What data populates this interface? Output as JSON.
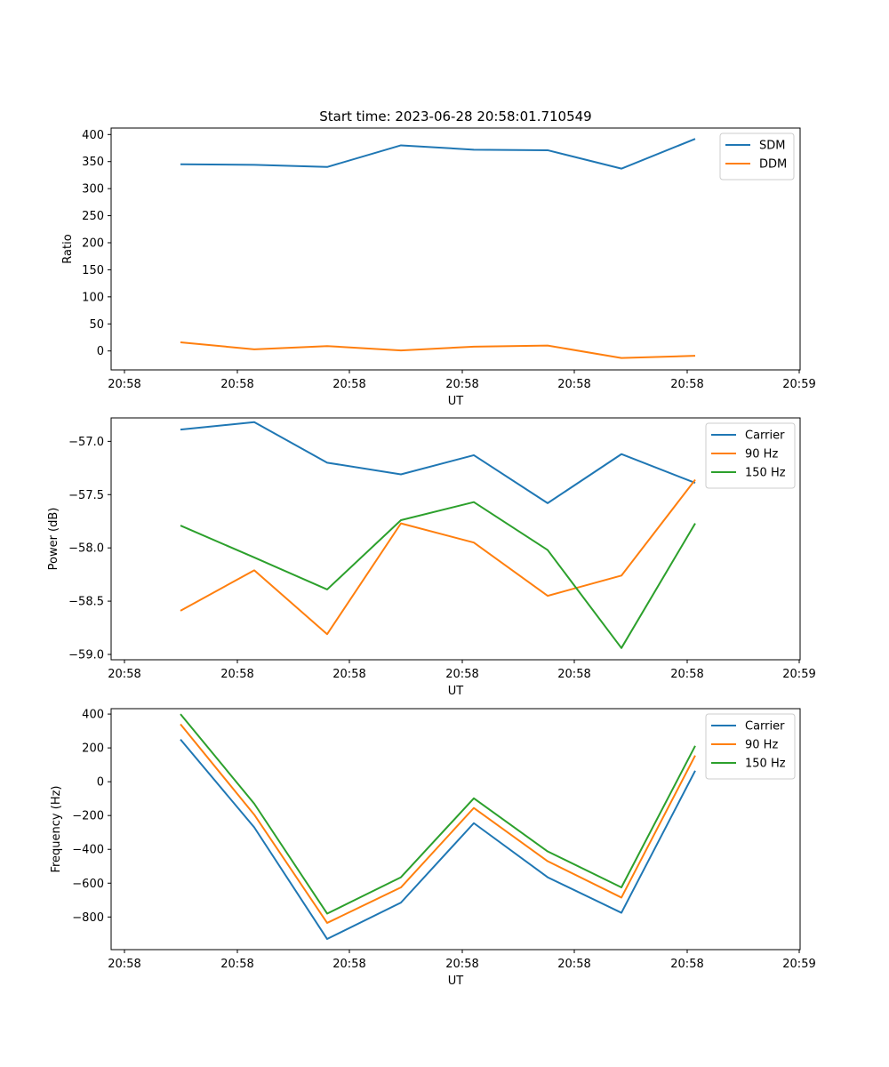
{
  "title": "Start time: 2023-06-28 20:58:01.710549",
  "chart_data": [
    {
      "type": "line",
      "xlabel": "UT",
      "ylabel": "Ratio",
      "x_tick_labels": [
        "20:58",
        "20:58",
        "20:58",
        "20:58",
        "20:58",
        "20:58",
        "20:58",
        "20:59"
      ],
      "y_ticks": [
        0,
        50,
        100,
        150,
        200,
        250,
        300,
        350,
        400
      ],
      "y_tick_labels": [
        "0",
        "50",
        "100",
        "150",
        "200",
        "250",
        "300",
        "350",
        "400"
      ],
      "ylim": [
        -35,
        412
      ],
      "legend": "top-right",
      "series": [
        {
          "name": "SDM",
          "color": "#1f77b4",
          "values": [
            345,
            344,
            340,
            380,
            372,
            371,
            337,
            392
          ]
        },
        {
          "name": "DDM",
          "color": "#ff7f0e",
          "values": [
            16,
            3,
            9,
            1,
            8,
            10,
            -13,
            -9
          ]
        }
      ]
    },
    {
      "type": "line",
      "xlabel": "UT",
      "ylabel": "Power (dB)",
      "x_tick_labels": [
        "20:58",
        "20:58",
        "20:58",
        "20:58",
        "20:58",
        "20:58",
        "20:58",
        "20:59"
      ],
      "y_ticks": [
        -57.0,
        -57.5,
        -58.0,
        -58.5,
        -59.0
      ],
      "y_tick_labels": [
        "−57.0",
        "−57.5",
        "−58.0",
        "−58.5",
        "−59.0"
      ],
      "ylim": [
        -59.05,
        -56.78
      ],
      "legend": "top-right",
      "series": [
        {
          "name": "Carrier",
          "color": "#1f77b4",
          "values": [
            -56.89,
            -56.82,
            -57.2,
            -57.31,
            -57.13,
            -57.58,
            -57.12,
            -57.39
          ]
        },
        {
          "name": "90 Hz",
          "color": "#ff7f0e",
          "values": [
            -58.59,
            -58.21,
            -58.81,
            -57.77,
            -57.95,
            -58.45,
            -58.26,
            -57.36
          ]
        },
        {
          "name": "150 Hz",
          "color": "#2ca02c",
          "values": [
            -57.79,
            -58.09,
            -58.39,
            -57.74,
            -57.57,
            -58.02,
            -58.94,
            -57.77
          ]
        }
      ]
    },
    {
      "type": "line",
      "xlabel": "UT",
      "ylabel": "Frequency (Hz)",
      "x_tick_labels": [
        "20:58",
        "20:58",
        "20:58",
        "20:58",
        "20:58",
        "20:58",
        "20:58",
        "20:59"
      ],
      "y_ticks": [
        -800,
        -600,
        -400,
        -200,
        0,
        200,
        400
      ],
      "y_tick_labels": [
        "−800",
        "−600",
        "−400",
        "−200",
        "0",
        "200",
        "400"
      ],
      "ylim": [
        -993,
        432
      ],
      "legend": "top-right",
      "series": [
        {
          "name": "Carrier",
          "color": "#1f77b4",
          "values": [
            250,
            -270,
            -930,
            -715,
            -245,
            -565,
            -775,
            65
          ]
        },
        {
          "name": "90 Hz",
          "color": "#ff7f0e",
          "values": [
            340,
            -195,
            -835,
            -625,
            -155,
            -470,
            -685,
            155
          ]
        },
        {
          "name": "150 Hz",
          "color": "#2ca02c",
          "values": [
            400,
            -130,
            -780,
            -565,
            -98,
            -412,
            -625,
            212
          ]
        }
      ]
    }
  ]
}
